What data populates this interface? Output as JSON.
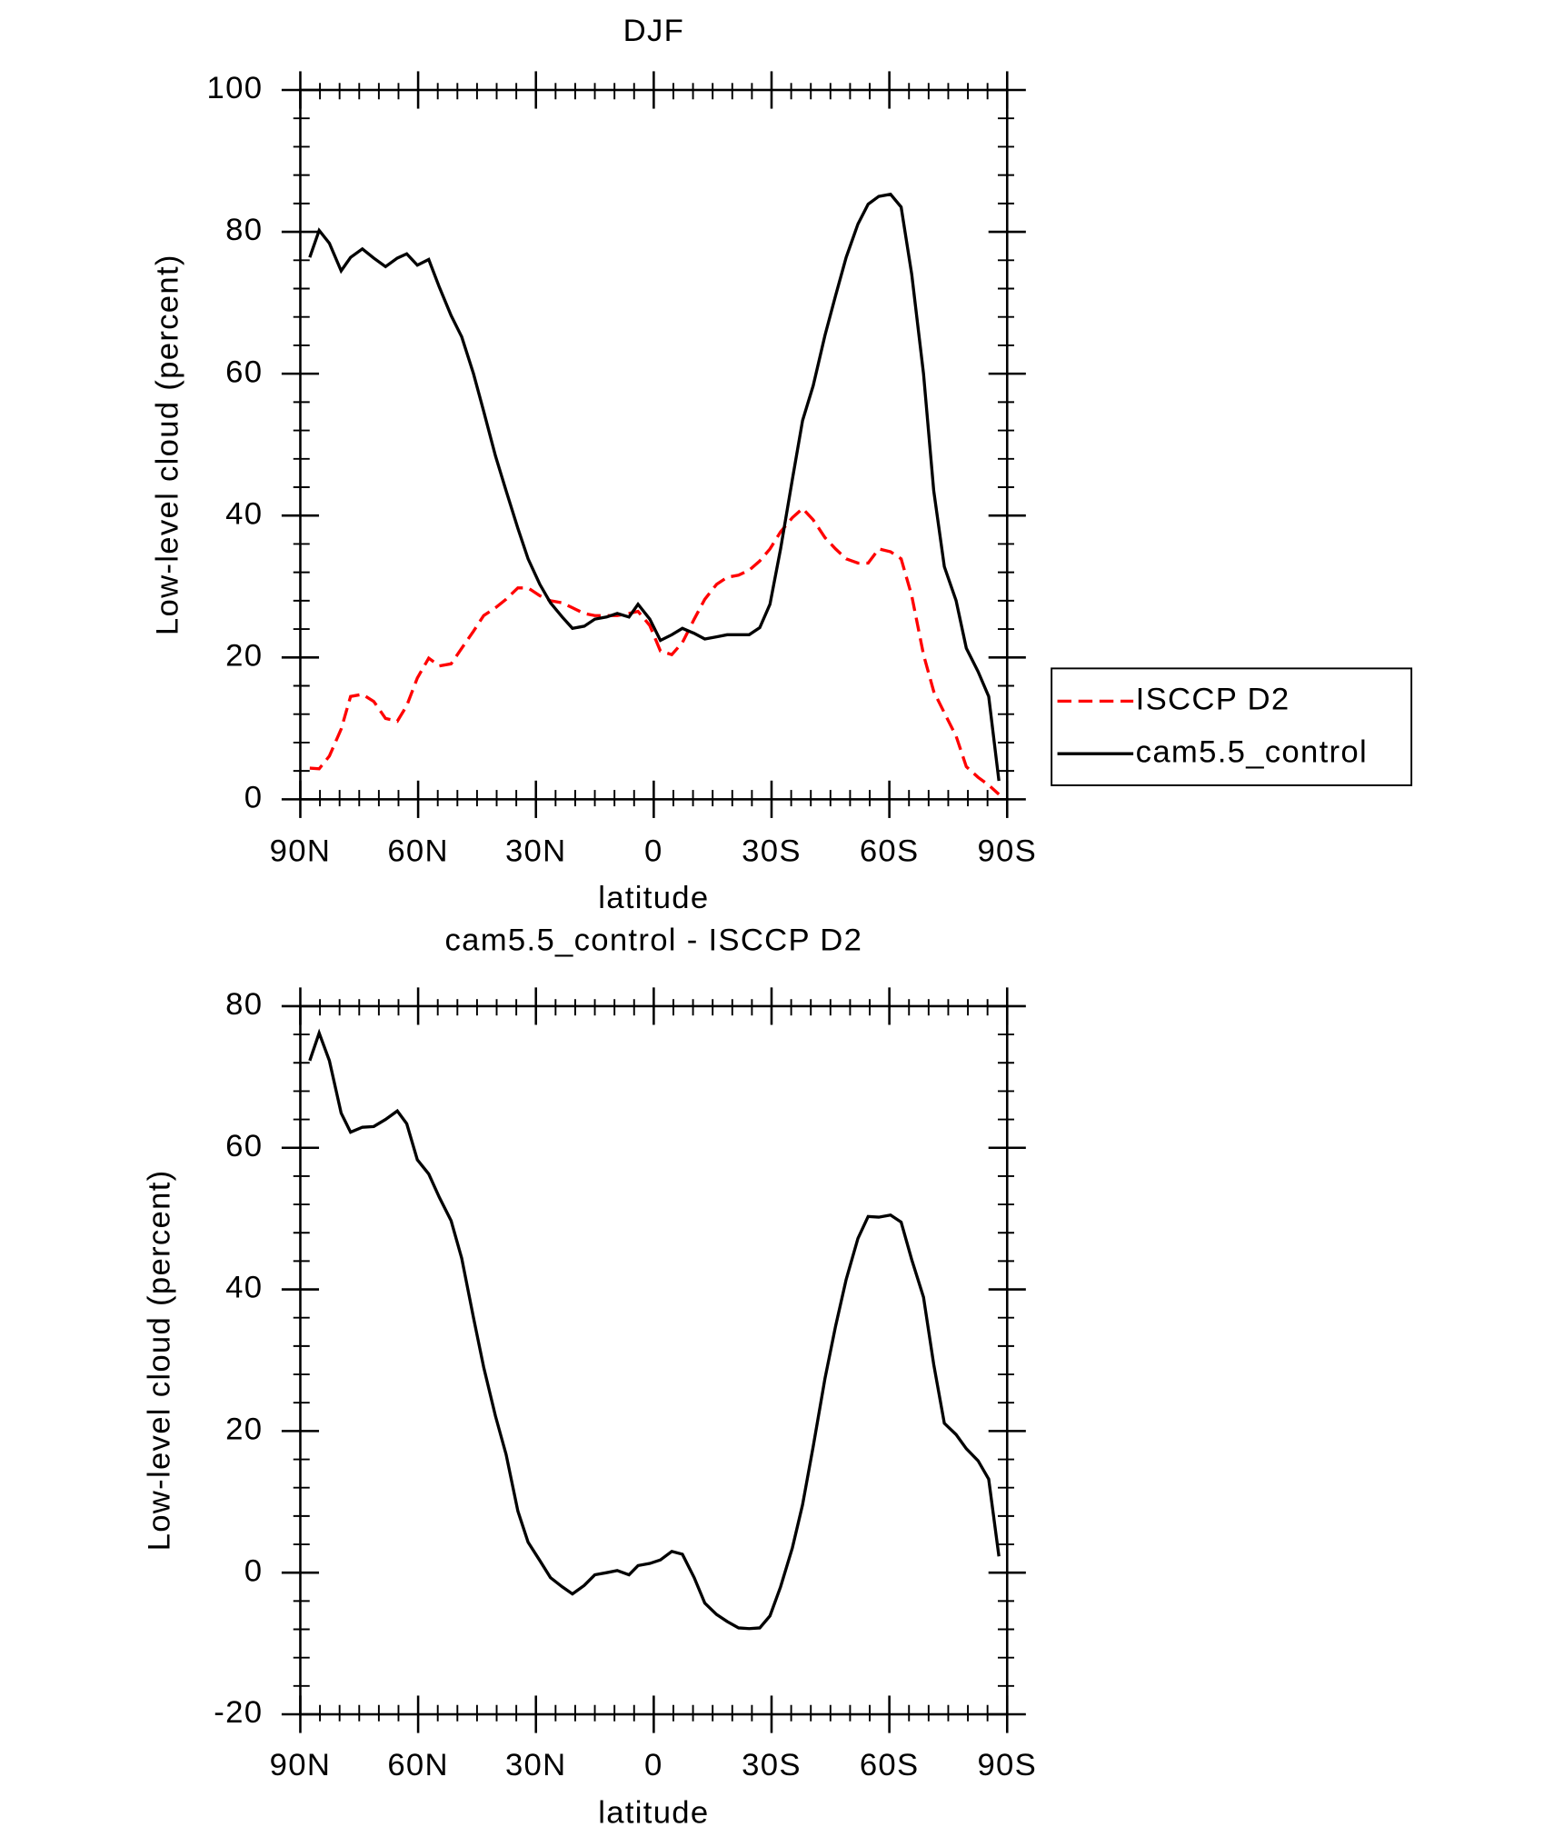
{
  "chart_data": [
    {
      "type": "line",
      "title": "DJF",
      "x_label": "latitude",
      "y_label": "Low-level cloud (percent)",
      "x": [
        87.6,
        85.2,
        82.6,
        79.6,
        77.2,
        74.2,
        71.3,
        68.3,
        65.3,
        62.9,
        60.2,
        57.3,
        54.6,
        51.6,
        48.9,
        45.9,
        43.3,
        40.3,
        37.6,
        34.6,
        32,
        29,
        26.3,
        23.3,
        20.7,
        17.7,
        15,
        12,
        9.3,
        6.3,
        4,
        1,
        -1.7,
        -4.6,
        -7.3,
        -10.3,
        -13,
        -16,
        -18.7,
        -21.6,
        -24.3,
        -27,
        -29.6,
        -32.3,
        -35.3,
        -37.9,
        -40.6,
        -43.6,
        -46.3,
        -49,
        -52,
        -54.6,
        -57.3,
        -60.3,
        -63,
        -65.7,
        -68.7,
        -71.3,
        -74,
        -77,
        -79.6,
        -82.6,
        -85.3,
        -87.9
      ],
      "series": [
        {
          "name": "ISCCP D2",
          "color": "#ff0000",
          "line_style": "dashed",
          "values": [
            4.4,
            4.3,
            6.1,
            9.9,
            14.5,
            14.8,
            13.8,
            11.4,
            11,
            13.2,
            17.1,
            19.9,
            18.8,
            19.1,
            21.3,
            23.7,
            25.9,
            27,
            28.2,
            29.8,
            29.8,
            28.7,
            28,
            27.7,
            27,
            26.2,
            25.9,
            25.9,
            25.9,
            26.2,
            26.5,
            24.5,
            20.9,
            20.4,
            22.1,
            25.4,
            28.2,
            30.3,
            31.3,
            31.6,
            32.3,
            33.6,
            35.3,
            37.7,
            39.7,
            41,
            39.4,
            36.9,
            35.3,
            33.9,
            33.3,
            33.3,
            35.3,
            34.9,
            33.9,
            28.7,
            20.4,
            15.2,
            12.2,
            8.9,
            4.6,
            3.1,
            2,
            0.7
          ]
        },
        {
          "name": "cam5.5_control",
          "color": "#000000",
          "line_style": "solid",
          "values": [
            76.4,
            80.2,
            78.4,
            74.5,
            76.4,
            77.6,
            76.3,
            75.1,
            76.3,
            76.9,
            75.3,
            76.1,
            72.2,
            68.2,
            65.2,
            60,
            54.7,
            48.4,
            43.5,
            38.2,
            33.9,
            30.3,
            27.7,
            25.7,
            24.1,
            24.4,
            25.4,
            25.7,
            26.2,
            25.7,
            27.5,
            25.4,
            22.4,
            23.2,
            24.1,
            23.4,
            22.6,
            22.9,
            23.2,
            23.2,
            23.2,
            24.2,
            27.5,
            35.3,
            45.1,
            53.4,
            58.3,
            65.4,
            71,
            76.4,
            81.1,
            83.9,
            85,
            85.3,
            83.5,
            74,
            60,
            43.5,
            32.8,
            28,
            21.3,
            18,
            14.5,
            2.6
          ]
        }
      ],
      "xlim": [
        90,
        -90
      ],
      "xticks": [
        {
          "value": 90,
          "label": "90N"
        },
        {
          "value": 60,
          "label": "60N"
        },
        {
          "value": 30,
          "label": "30N"
        },
        0,
        {
          "value": -30,
          "label": "30S"
        },
        {
          "value": -60,
          "label": "60S"
        },
        {
          "value": -90,
          "label": "90S"
        }
      ],
      "ylim": [
        0,
        100
      ],
      "yticks": [
        0,
        20,
        40,
        60,
        80,
        100
      ],
      "x_minor_divisions": 6,
      "y_minor_divisions": 5,
      "legend": "right"
    },
    {
      "type": "line",
      "title": "cam5.5_control - ISCCP D2",
      "x_label": "latitude",
      "y_label": "Low-level cloud (percent)",
      "x": [
        87.6,
        85.2,
        82.6,
        79.6,
        77.2,
        74.2,
        71.3,
        68.3,
        65.3,
        62.9,
        60.2,
        57.3,
        54.6,
        51.6,
        48.9,
        45.9,
        43.3,
        40.3,
        37.6,
        34.6,
        32,
        29,
        26.3,
        23.3,
        20.7,
        17.7,
        15,
        12,
        9.3,
        6.3,
        4,
        1,
        -1.7,
        -4.6,
        -7.3,
        -10.3,
        -13,
        -16,
        -18.7,
        -21.6,
        -24.3,
        -27,
        -29.6,
        -32.3,
        -35.3,
        -37.9,
        -40.6,
        -43.6,
        -46.3,
        -49,
        -52,
        -54.6,
        -57.3,
        -60.3,
        -63,
        -65.7,
        -68.7,
        -71.3,
        -74,
        -77,
        -79.6,
        -82.6,
        -85.3,
        -87.9
      ],
      "color": "#000000",
      "values": [
        72.3,
        76.2,
        72.3,
        64.9,
        62.2,
        62.9,
        63,
        64,
        65.2,
        63.4,
        58.3,
        56.3,
        53,
        49.7,
        44.4,
        36,
        29,
        22.1,
        16.7,
        8.7,
        4.3,
        1.7,
        -0.7,
        -2,
        -3,
        -1.8,
        -0.3,
        0,
        0.3,
        -0.3,
        1,
        1.3,
        1.8,
        3,
        2.6,
        -0.7,
        -4.3,
        -5.9,
        -6.9,
        -7.8,
        -7.9,
        -7.8,
        -6.1,
        -2,
        3.5,
        9.6,
        17.8,
        27.4,
        34.8,
        41.4,
        47.2,
        50.3,
        50.2,
        50.5,
        49.5,
        44.2,
        38.9,
        29.4,
        21.1,
        19.5,
        17.5,
        15.8,
        13.2,
        2.3
      ],
      "xlim": [
        90,
        -90
      ],
      "xticks": [
        {
          "value": 90,
          "label": "90N"
        },
        {
          "value": 60,
          "label": "60N"
        },
        {
          "value": 30,
          "label": "30N"
        },
        0,
        {
          "value": -30,
          "label": "30S"
        },
        {
          "value": -60,
          "label": "60S"
        },
        {
          "value": -90,
          "label": "90S"
        }
      ],
      "ylim": [
        -20,
        80
      ],
      "yticks": [
        -20,
        0,
        20,
        40,
        60,
        80
      ],
      "x_minor_divisions": 6,
      "y_minor_divisions": 5
    }
  ]
}
